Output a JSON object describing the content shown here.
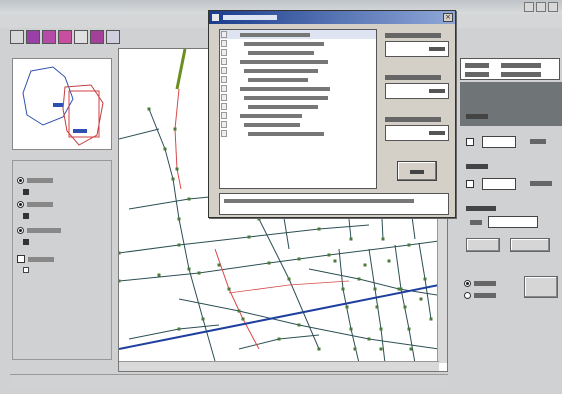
{
  "app": {
    "window_buttons": [
      "minimize",
      "maximize",
      "close"
    ],
    "toolbar_icons": [
      "zoom-in-icon",
      "zoom-out-icon",
      "pan-icon",
      "select-icon",
      "info-icon",
      "layer-icon",
      "window-icon"
    ]
  },
  "colors": {
    "map_bg": "#ffffff",
    "network_line": "#2c4f54",
    "node": "#4a7a3a",
    "road_red": "#d64a4a",
    "road_blue": "#1f3fa0",
    "selected_line": "#6b8e1e",
    "dialog_title": "#1a3c8c",
    "accent_strip": "#6f7476"
  },
  "left_panel": {
    "layers": [
      {
        "checked": true
      },
      {
        "checked": true
      },
      {
        "checked": true
      },
      {
        "checked": false
      }
    ]
  },
  "dialog": {
    "list_rows": 12,
    "selected_row": 0
  },
  "right_panel": {
    "checks": [
      false,
      false
    ]
  }
}
